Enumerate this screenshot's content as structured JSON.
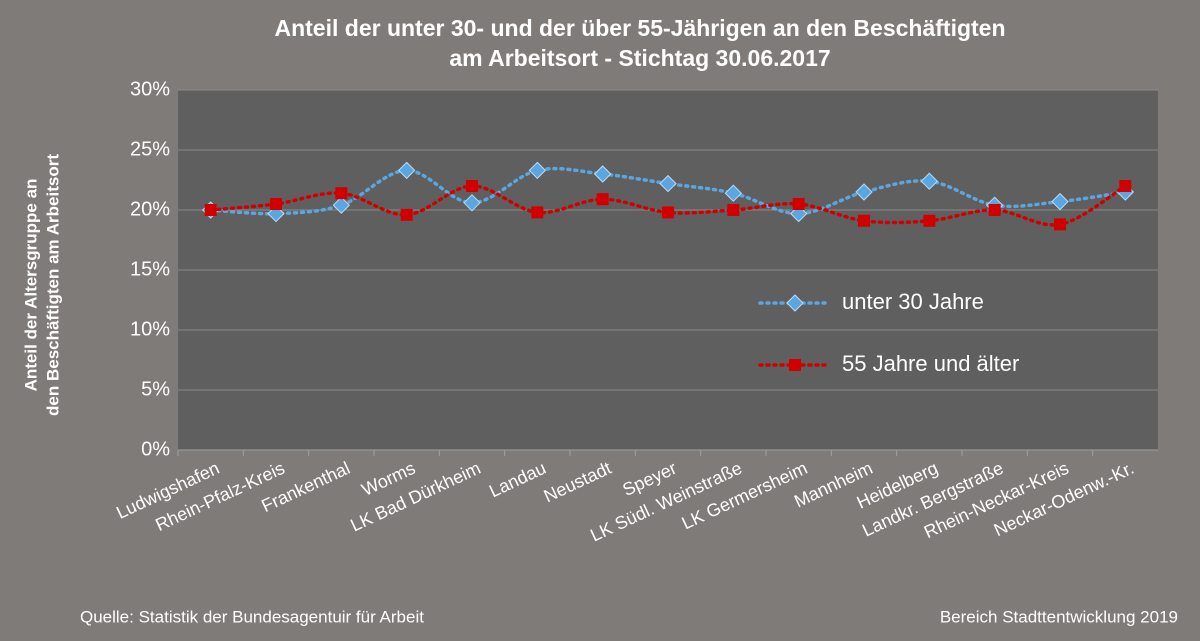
{
  "chart_data": {
    "type": "line",
    "title": [
      "Anteil  der unter 30-  und der über 55-Jährigen an den Beschäftigten",
      "am Arbeitsort - Stichtag 30.06.2017"
    ],
    "ylabel": [
      "Anteil der Altersgruppe an",
      "den Beschäftigten am Arbeitsort"
    ],
    "categories": [
      "Ludwigshafen",
      "Rhein-Pfalz-Kreis",
      "Frankenthal",
      "Worms",
      "LK Bad Dürkheim",
      "Landau",
      "Neustadt",
      "Speyer",
      "LK Südl. Weinstraße",
      "LK Germersheim",
      "Mannheim",
      "Heidelberg",
      "Landkr. Bergstraße",
      "Rhein-Neckar-Kreis",
      "Neckar-Odenw.-Kr."
    ],
    "series": [
      {
        "name": "unter 30 Jahre",
        "color": "#5aa6e0",
        "marker": "diamond",
        "values": [
          20.0,
          19.7,
          20.4,
          23.3,
          20.6,
          23.3,
          23.0,
          22.2,
          21.4,
          19.7,
          21.5,
          22.4,
          20.4,
          20.7,
          21.5
        ]
      },
      {
        "name": "55 Jahre und älter",
        "color": "#d00000",
        "marker": "square",
        "values": [
          20.0,
          20.5,
          21.4,
          19.6,
          22.0,
          19.8,
          20.9,
          19.8,
          20.0,
          20.5,
          19.1,
          19.1,
          20.0,
          18.8,
          22.0
        ]
      }
    ],
    "ylim": [
      0,
      30
    ],
    "yticks": [
      {
        "value": 0,
        "label": "0%"
      },
      {
        "value": 5,
        "label": "5%"
      },
      {
        "value": 10,
        "label": "10%"
      },
      {
        "value": 15,
        "label": "15%"
      },
      {
        "value": 20,
        "label": "20%"
      },
      {
        "value": 25,
        "label": "25%"
      },
      {
        "value": 30,
        "label": "30%"
      }
    ],
    "grid": true,
    "legend": "right",
    "source": "Quelle: Statistik der Bundesagentuir für Arbeit",
    "credit": "Bereich Stadttentwicklung 2019"
  }
}
